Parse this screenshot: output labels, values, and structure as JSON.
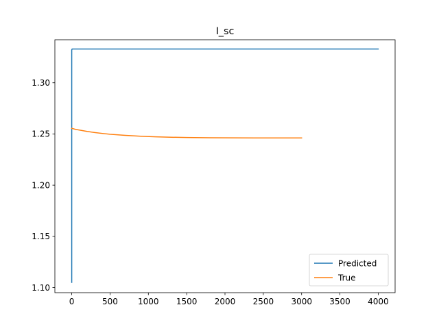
{
  "chart_data": {
    "type": "line",
    "title": "I_sc",
    "xlabel": "",
    "ylabel": "",
    "xlim": [
      -220,
      4220
    ],
    "ylim": [
      1.095,
      1.342
    ],
    "xticks": [
      0,
      500,
      1000,
      1500,
      2000,
      2500,
      3000,
      3500,
      4000
    ],
    "yticks": [
      1.1,
      1.15,
      1.2,
      1.25,
      1.3
    ],
    "ytick_labels": [
      "1.10",
      "1.15",
      "1.20",
      "1.25",
      "1.30"
    ],
    "grid": false,
    "legend": {
      "position": "lower-right",
      "entries": [
        "Predicted",
        "True"
      ]
    },
    "series": [
      {
        "name": "Predicted",
        "color": "#1f77b4",
        "x": [
          0,
          0,
          5,
          100,
          1000,
          2000,
          3000,
          4000
        ],
        "y": [
          1.105,
          1.332,
          1.333,
          1.333,
          1.333,
          1.333,
          1.333,
          1.333
        ]
      },
      {
        "name": "True",
        "color": "#ff7f0e",
        "x": [
          0,
          50,
          100,
          200,
          300,
          400,
          500,
          700,
          900,
          1100,
          1300,
          1500,
          1800,
          2100,
          2400,
          2700,
          3000
        ],
        "y": [
          1.2555,
          1.2545,
          1.2538,
          1.2525,
          1.2514,
          1.2505,
          1.2497,
          1.2486,
          1.2478,
          1.2472,
          1.2468,
          1.2465,
          1.2463,
          1.2462,
          1.2461,
          1.2461,
          1.2461
        ]
      }
    ]
  }
}
